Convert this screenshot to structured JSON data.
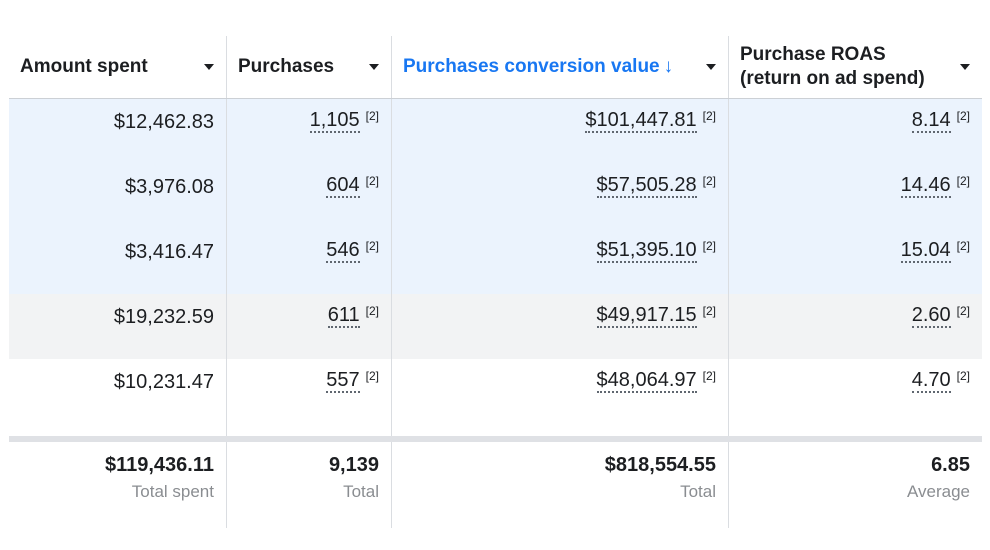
{
  "headers": [
    {
      "label": "Amount spent"
    },
    {
      "label": "Purchases"
    },
    {
      "label": "Purchases conversion value",
      "sort_arrow": "↓"
    },
    {
      "label_line1": "Purchase ROAS",
      "label_line2": "(return on ad spend)"
    }
  ],
  "rows": [
    {
      "amount": "$12,462.83",
      "purchases": "1,105",
      "purchases_note": "[2]",
      "value": "$101,447.81",
      "value_note": "[2]",
      "roas": "8.14",
      "roas_note": "[2]"
    },
    {
      "amount": "$3,976.08",
      "purchases": "604",
      "purchases_note": "[2]",
      "value": "$57,505.28",
      "value_note": "[2]",
      "roas": "14.46",
      "roas_note": "[2]"
    },
    {
      "amount": "$3,416.47",
      "purchases": "546",
      "purchases_note": "[2]",
      "value": "$51,395.10",
      "value_note": "[2]",
      "roas": "15.04",
      "roas_note": "[2]"
    },
    {
      "amount": "$19,232.59",
      "purchases": "611",
      "purchases_note": "[2]",
      "value": "$49,917.15",
      "value_note": "[2]",
      "roas": "2.60",
      "roas_note": "[2]"
    },
    {
      "amount": "$10,231.47",
      "purchases": "557",
      "purchases_note": "[2]",
      "value": "$48,064.97",
      "value_note": "[2]",
      "roas": "4.70",
      "roas_note": "[2]"
    }
  ],
  "totals": {
    "amount": "$119,436.11",
    "amount_label": "Total spent",
    "purchases": "9,139",
    "purchases_label": "Total",
    "value": "$818,554.55",
    "value_label": "Total",
    "roas": "6.85",
    "roas_label": "Average"
  },
  "colors": {
    "accent": "#1877f2",
    "row_highlight": "#ebf3fd",
    "row_hover": "#f2f3f4"
  }
}
